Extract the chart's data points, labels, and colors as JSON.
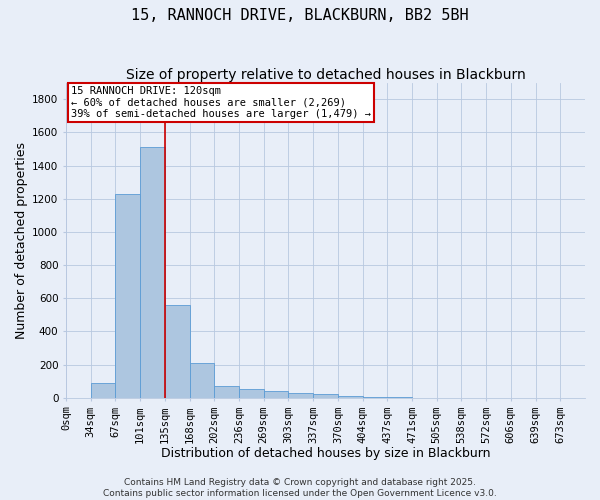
{
  "title": "15, RANNOCH DRIVE, BLACKBURN, BB2 5BH",
  "subtitle": "Size of property relative to detached houses in Blackburn",
  "xlabel": "Distribution of detached houses by size in Blackburn",
  "ylabel": "Number of detached properties",
  "bin_labels": [
    "0sqm",
    "34sqm",
    "67sqm",
    "101sqm",
    "135sqm",
    "168sqm",
    "202sqm",
    "236sqm",
    "269sqm",
    "303sqm",
    "337sqm",
    "370sqm",
    "404sqm",
    "437sqm",
    "471sqm",
    "505sqm",
    "538sqm",
    "572sqm",
    "606sqm",
    "639sqm",
    "673sqm"
  ],
  "bin_values": [
    0,
    90,
    1230,
    1510,
    560,
    210,
    70,
    50,
    40,
    30,
    20,
    10,
    5,
    2,
    1,
    0,
    0,
    0,
    0,
    0,
    0
  ],
  "bar_color": "#adc6e0",
  "bar_edge_color": "#5b9bd5",
  "red_line_x": 4.0,
  "red_line_color": "#cc0000",
  "annotation_text": "15 RANNOCH DRIVE: 120sqm\n← 60% of detached houses are smaller (2,269)\n39% of semi-detached houses are larger (1,479) →",
  "annotation_box_color": "#ffffff",
  "annotation_box_edge_color": "#cc0000",
  "ylim": [
    0,
    1900
  ],
  "yticks": [
    0,
    200,
    400,
    600,
    800,
    1000,
    1200,
    1400,
    1600,
    1800
  ],
  "bg_color": "#e8eef8",
  "grid_color": "#b8c8e0",
  "title_fontsize": 11,
  "subtitle_fontsize": 10,
  "axis_label_fontsize": 9,
  "tick_fontsize": 7.5,
  "annotation_fontsize": 7.5,
  "footer_text": "Contains HM Land Registry data © Crown copyright and database right 2025.\nContains public sector information licensed under the Open Government Licence v3.0.",
  "footer_fontsize": 6.5
}
